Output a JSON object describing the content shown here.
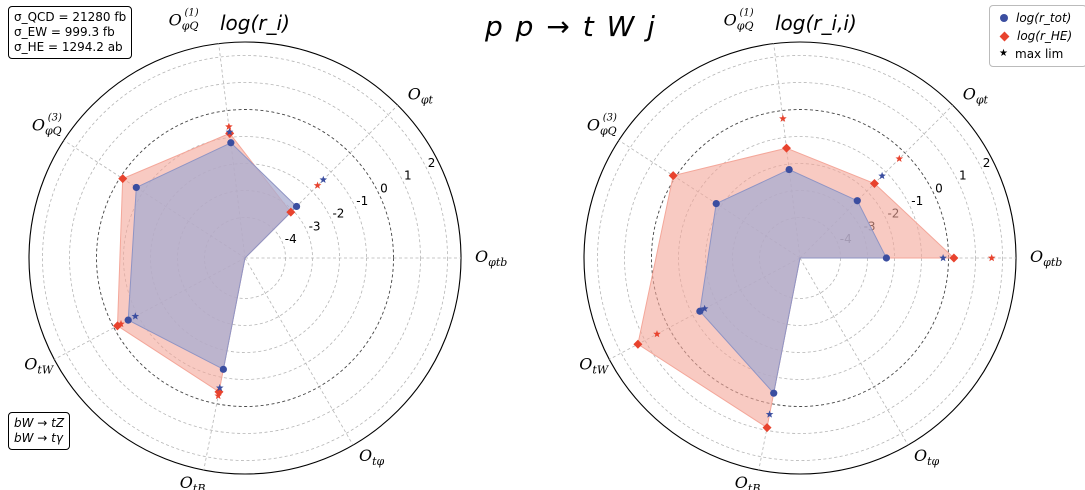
{
  "title": "p p → t W j",
  "process_box": [
    "bW → tZ",
    "bW → tγ"
  ],
  "xsec_box": [
    "σ_QCD = 21280 fb",
    "σ_EW = 999.3 fb",
    "σ_HE = 1294.2 ab"
  ],
  "legend": {
    "entries": [
      {
        "label": "log(r_tot)",
        "marker": "circle",
        "color": "#3b4ea0"
      },
      {
        "label": "log(r_HE)",
        "marker": "diamond",
        "color": "#e8432e"
      },
      {
        "label": "max lim",
        "marker": "star",
        "color": "#000000"
      }
    ],
    "placement": "top-right"
  },
  "colors": {
    "tot": "#3b4ea0",
    "he": "#e8432e",
    "he_fill": "#f4a79a",
    "tot_fill": "#a8acd0"
  },
  "chart_data": [
    {
      "type": "radar",
      "title": "log(r_i)",
      "radial_ticks": [
        -4,
        -3,
        -2,
        -1,
        0,
        1,
        2
      ],
      "rlim": [
        -5.5,
        2.5
      ],
      "axes": [
        "O_φtb",
        "O_φt",
        "O_φQ^(1)",
        "O_φQ^(3)",
        "O_tW",
        "O_tB",
        "O_tφ"
      ],
      "series": [
        {
          "name": "log(r_tot)",
          "values": [
            -5.5,
            -2.8,
            -1.2,
            -0.7,
            -0.6,
            -1.3,
            -5.5
          ]
        },
        {
          "name": "log(r_HE)",
          "values": [
            -5.5,
            -3.1,
            -0.85,
            -0.1,
            -0.15,
            -0.45,
            -5.5
          ]
        },
        {
          "name": "max lim",
          "values": [
            null,
            -1.7,
            -0.6,
            null,
            -0.3,
            -0.3,
            null
          ]
        }
      ],
      "max_lim_blue": [
        null,
        -1.4,
        -0.8,
        null,
        -0.9,
        -0.6,
        null
      ]
    },
    {
      "type": "radar",
      "title": "log(r_i,i)",
      "radial_ticks": [
        -4,
        -3,
        -2,
        -1,
        0,
        1,
        2
      ],
      "rlim": [
        -5.5,
        2.5
      ],
      "axes": [
        "O_φtb",
        "O_φt",
        "O_φQ^(1)",
        "O_φQ^(3)",
        "O_tW",
        "O_tB",
        "O_tφ"
      ],
      "series": [
        {
          "name": "log(r_tot)",
          "values": [
            -2.3,
            -2.5,
            -2.2,
            -1.8,
            -1.3,
            -0.4,
            -5.5
          ]
        },
        {
          "name": "log(r_HE)",
          "values": [
            0.2,
            -1.6,
            -1.4,
            0.1,
            1.3,
            0.9,
            -5.5
          ]
        },
        {
          "name": "max lim",
          "values": [
            1.6,
            -0.3,
            -0.3,
            null,
            0.5,
            null,
            null
          ]
        }
      ],
      "max_lim_blue": [
        -0.2,
        -1.2,
        null,
        null,
        -1.5,
        0.4,
        null
      ]
    }
  ]
}
